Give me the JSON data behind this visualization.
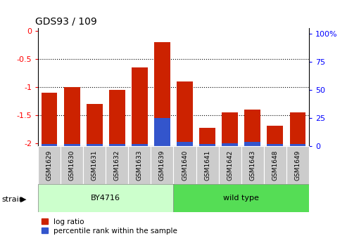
{
  "title": "GDS93 / 109",
  "samples": [
    "GSM1629",
    "GSM1630",
    "GSM1631",
    "GSM1632",
    "GSM1633",
    "GSM1639",
    "GSM1640",
    "GSM1641",
    "GSM1642",
    "GSM1643",
    "GSM1648",
    "GSM1649"
  ],
  "log_ratio": [
    -1.1,
    -1.0,
    -1.3,
    -1.05,
    -0.65,
    -0.2,
    -0.9,
    -1.72,
    -1.45,
    -1.4,
    -1.68,
    -1.45
  ],
  "percentile_rank": [
    2,
    2,
    2,
    2,
    2,
    25,
    4,
    2,
    3,
    4,
    2,
    2
  ],
  "ylim_left": [
    -2.05,
    0.05
  ],
  "ylim_right": [
    0,
    105
  ],
  "yticks_left": [
    0,
    -0.5,
    -1.0,
    -1.5,
    -2.0
  ],
  "ytick_labels_left": [
    "0",
    "-0.5",
    "-1",
    "-1.5",
    "-2"
  ],
  "yticks_right": [
    0,
    25,
    50,
    75,
    100
  ],
  "ytick_labels_right": [
    "0",
    "25",
    "50",
    "75",
    "100%"
  ],
  "bar_color": "#cc2200",
  "percentile_color": "#3355cc",
  "background_color": "#ffffff",
  "tick_area_color": "#cccccc",
  "by4716_color": "#ccffcc",
  "wildtype_color": "#55dd55",
  "strain_label": "strain",
  "legend_log_ratio": "log ratio",
  "legend_percentile": "percentile rank within the sample",
  "group_boundary": 5.5,
  "group1_label": "BY4716",
  "group2_label": "wild type"
}
